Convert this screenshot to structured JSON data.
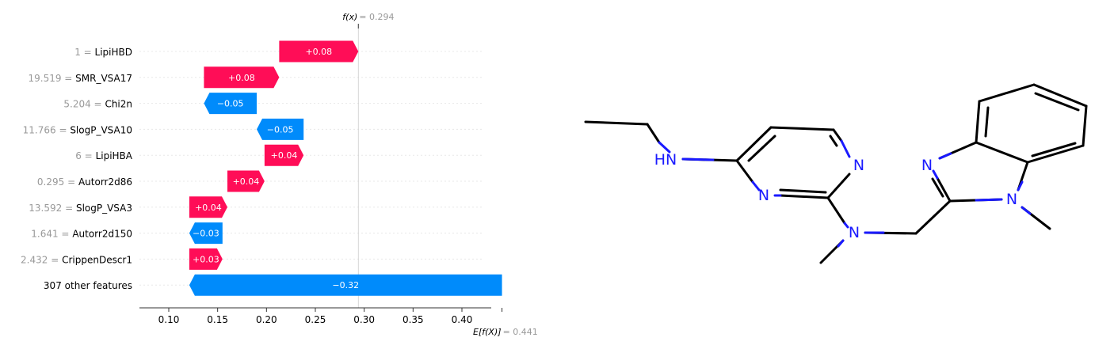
{
  "chart_data": {
    "type": "waterfall",
    "fx_label": "f(x)",
    "fx_value_text": "= 0.294",
    "fx": 0.294,
    "ex_label": "E[f(X)]",
    "ex_value_text": "= 0.441",
    "ex": 0.441,
    "xlim": [
      0.07,
      0.43
    ],
    "xticks": [
      {
        "value": 0.1,
        "label": "0.10"
      },
      {
        "value": 0.15,
        "label": "0.15"
      },
      {
        "value": 0.2,
        "label": "0.20"
      },
      {
        "value": 0.25,
        "label": "0.25"
      },
      {
        "value": 0.3,
        "label": "0.30"
      },
      {
        "value": 0.35,
        "label": "0.35"
      },
      {
        "value": 0.4,
        "label": "0.40"
      }
    ],
    "colors": {
      "positive": "#ff0d57",
      "negative": "#008bfb",
      "value_text": "#999999",
      "label_text": "#000000"
    },
    "features": [
      {
        "value_text": "1 =",
        "name": "LipiHBD",
        "start": 0.213,
        "end": 0.294,
        "label": "+0.08"
      },
      {
        "value_text": "19.519 =",
        "name": "SMR_VSA17",
        "start": 0.136,
        "end": 0.213,
        "label": "+0.08"
      },
      {
        "value_text": "5.204 =",
        "name": "Chi2n",
        "start": 0.19,
        "end": 0.136,
        "label": "−0.05"
      },
      {
        "value_text": "11.766 =",
        "name": "SlogP_VSA10",
        "start": 0.238,
        "end": 0.19,
        "label": "−0.05"
      },
      {
        "value_text": "6 =",
        "name": "LipiHBA",
        "start": 0.198,
        "end": 0.238,
        "label": "+0.04"
      },
      {
        "value_text": "0.295 =",
        "name": "Autorr2d86",
        "start": 0.16,
        "end": 0.198,
        "label": "+0.04"
      },
      {
        "value_text": "13.592 =",
        "name": "SlogP_VSA3",
        "start": 0.121,
        "end": 0.16,
        "label": "+0.04"
      },
      {
        "value_text": "1.641 =",
        "name": "Autorr2d150",
        "start": 0.155,
        "end": 0.121,
        "label": "−0.03"
      },
      {
        "value_text": "2.432 =",
        "name": "CrippenDescr1",
        "start": 0.121,
        "end": 0.155,
        "label": "+0.03"
      },
      {
        "value_text": "",
        "name": "307 other features",
        "start": 0.441,
        "end": 0.121,
        "label": "−0.32"
      }
    ]
  },
  "molecule": {
    "atom_labels": [
      {
        "id": "hn",
        "text": "HN"
      },
      {
        "id": "n1",
        "text": "N"
      },
      {
        "id": "n2",
        "text": "N"
      },
      {
        "id": "n3",
        "text": "N"
      },
      {
        "id": "n4",
        "text": "N"
      },
      {
        "id": "n5",
        "text": "N"
      }
    ]
  }
}
